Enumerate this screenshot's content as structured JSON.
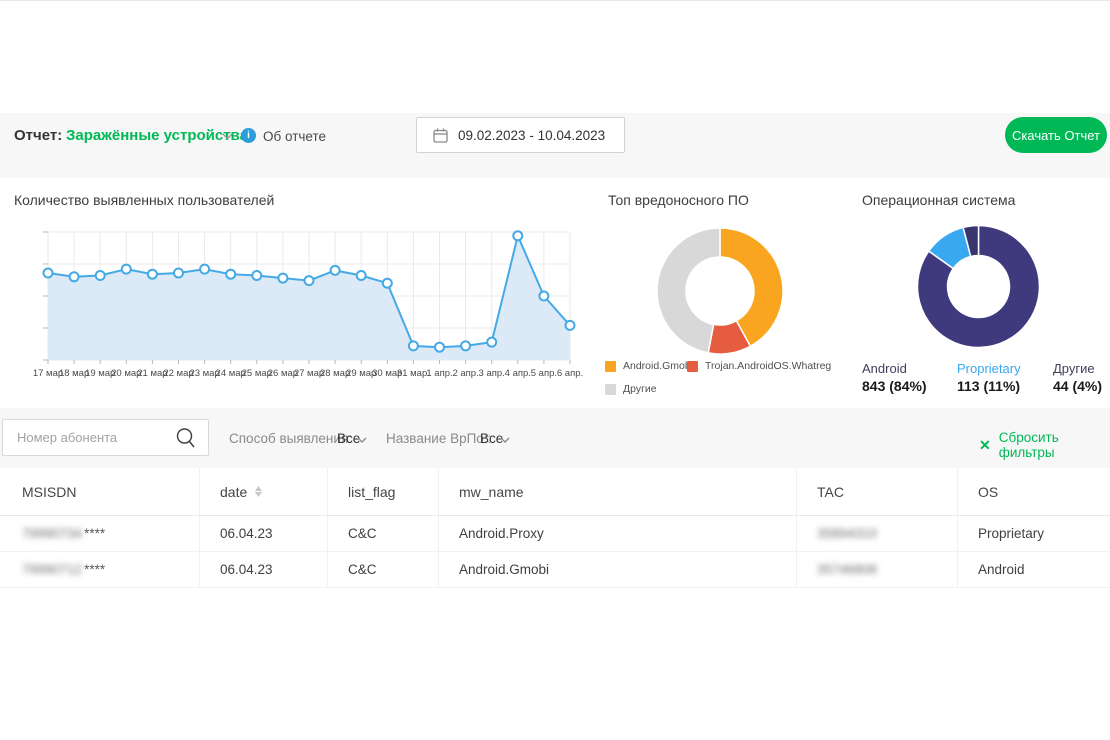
{
  "header": {
    "report_label": "Отчет:",
    "report_name": "Заражённые устройства",
    "about_report": "Об отчете",
    "info_icon_glyph": "i",
    "date_range": "09.02.2023 - 10.04.2023",
    "download_button": "Скачать Отчет"
  },
  "chart_data": [
    {
      "type": "line",
      "title": "Количество выявленных пользователей",
      "x": [
        "17 мар",
        "18 мар",
        "19 мар",
        "20 мар",
        "21 мар",
        "22 мар",
        "23 мар",
        "24 мар",
        "25 мар",
        "26 мар",
        "27 мар",
        "28 мар",
        "29 мар",
        "30 мар",
        "31 мар.",
        "1 апр.",
        "2 апр.",
        "3 апр.",
        "4 апр.",
        "5 апр.",
        "6 апр."
      ],
      "values": [
        68,
        65,
        66,
        71,
        67,
        68,
        71,
        67,
        66,
        64,
        62,
        70,
        66,
        60,
        11,
        10,
        11,
        14,
        97,
        50,
        27
      ],
      "ylim": [
        0,
        100
      ],
      "y_axis_labels": [],
      "grid": true,
      "line_color": "#45a9e5",
      "area_color": "#dceaf7",
      "marker": "circle-white"
    },
    {
      "type": "donut",
      "title": "Топ вредоносного ПО",
      "legend_position": "bottom",
      "slices": [
        {
          "label": "Android.Gmobi",
          "value": 42,
          "color": "#f9a51f"
        },
        {
          "label": "Trojan.AndroidOS.Whatreg",
          "value": 11,
          "color": "#e65c41"
        },
        {
          "label": "Другие",
          "value": 47,
          "color": "#d8d8d8"
        }
      ]
    },
    {
      "type": "donut",
      "title": "Операционная система",
      "legend_position": "bottom",
      "slices": [
        {
          "label": "Android",
          "value": 84,
          "count": 843,
          "stat": "843 (84%)",
          "color": "#3e3a7d"
        },
        {
          "label": "Proprietary",
          "value": 11,
          "count": 113,
          "stat": "113 (11%)",
          "color": "#38a8f0"
        },
        {
          "label": "Другие",
          "value": 4,
          "count": 44,
          "stat": "44 (4%)",
          "color": "#39356f"
        }
      ]
    }
  ],
  "filters": {
    "search_placeholder": "Номер абонента",
    "detection_label": "Способ выявления:",
    "detection_value": "Все",
    "malware_label": "Название ВрПо::",
    "malware_value": "Все",
    "reset_label": "Сбросить фильтры",
    "reset_icon_glyph": "✕"
  },
  "table": {
    "columns": [
      "MSISDN",
      "date",
      "list_flag",
      "mw_name",
      "TAC",
      "OS"
    ],
    "sorted_column": "date",
    "rows": [
      {
        "msisdn_masked": "79990734",
        "msisdn_suffix": "****",
        "date": "06.04.23",
        "list_flag": "C&C",
        "mw_name": "Android.Proxy",
        "tac_masked": "35894310",
        "os": "Proprietary"
      },
      {
        "msisdn_masked": "79990712",
        "msisdn_suffix": "****",
        "date": "06.04.23",
        "list_flag": "C&C",
        "mw_name": "Android.Gmobi",
        "tac_masked": "35746808",
        "os": "Android"
      }
    ]
  },
  "colors": {
    "accent_green": "#00b956",
    "info_blue": "#2d9cdb",
    "line_blue": "#45a9e5",
    "donut_orange": "#f9a51f",
    "donut_red": "#e65c41",
    "donut_gray": "#d8d8d8",
    "os_indigo": "#3e3a7d",
    "os_blue": "#38a8f0",
    "content_bg": "#f7f7f7"
  }
}
